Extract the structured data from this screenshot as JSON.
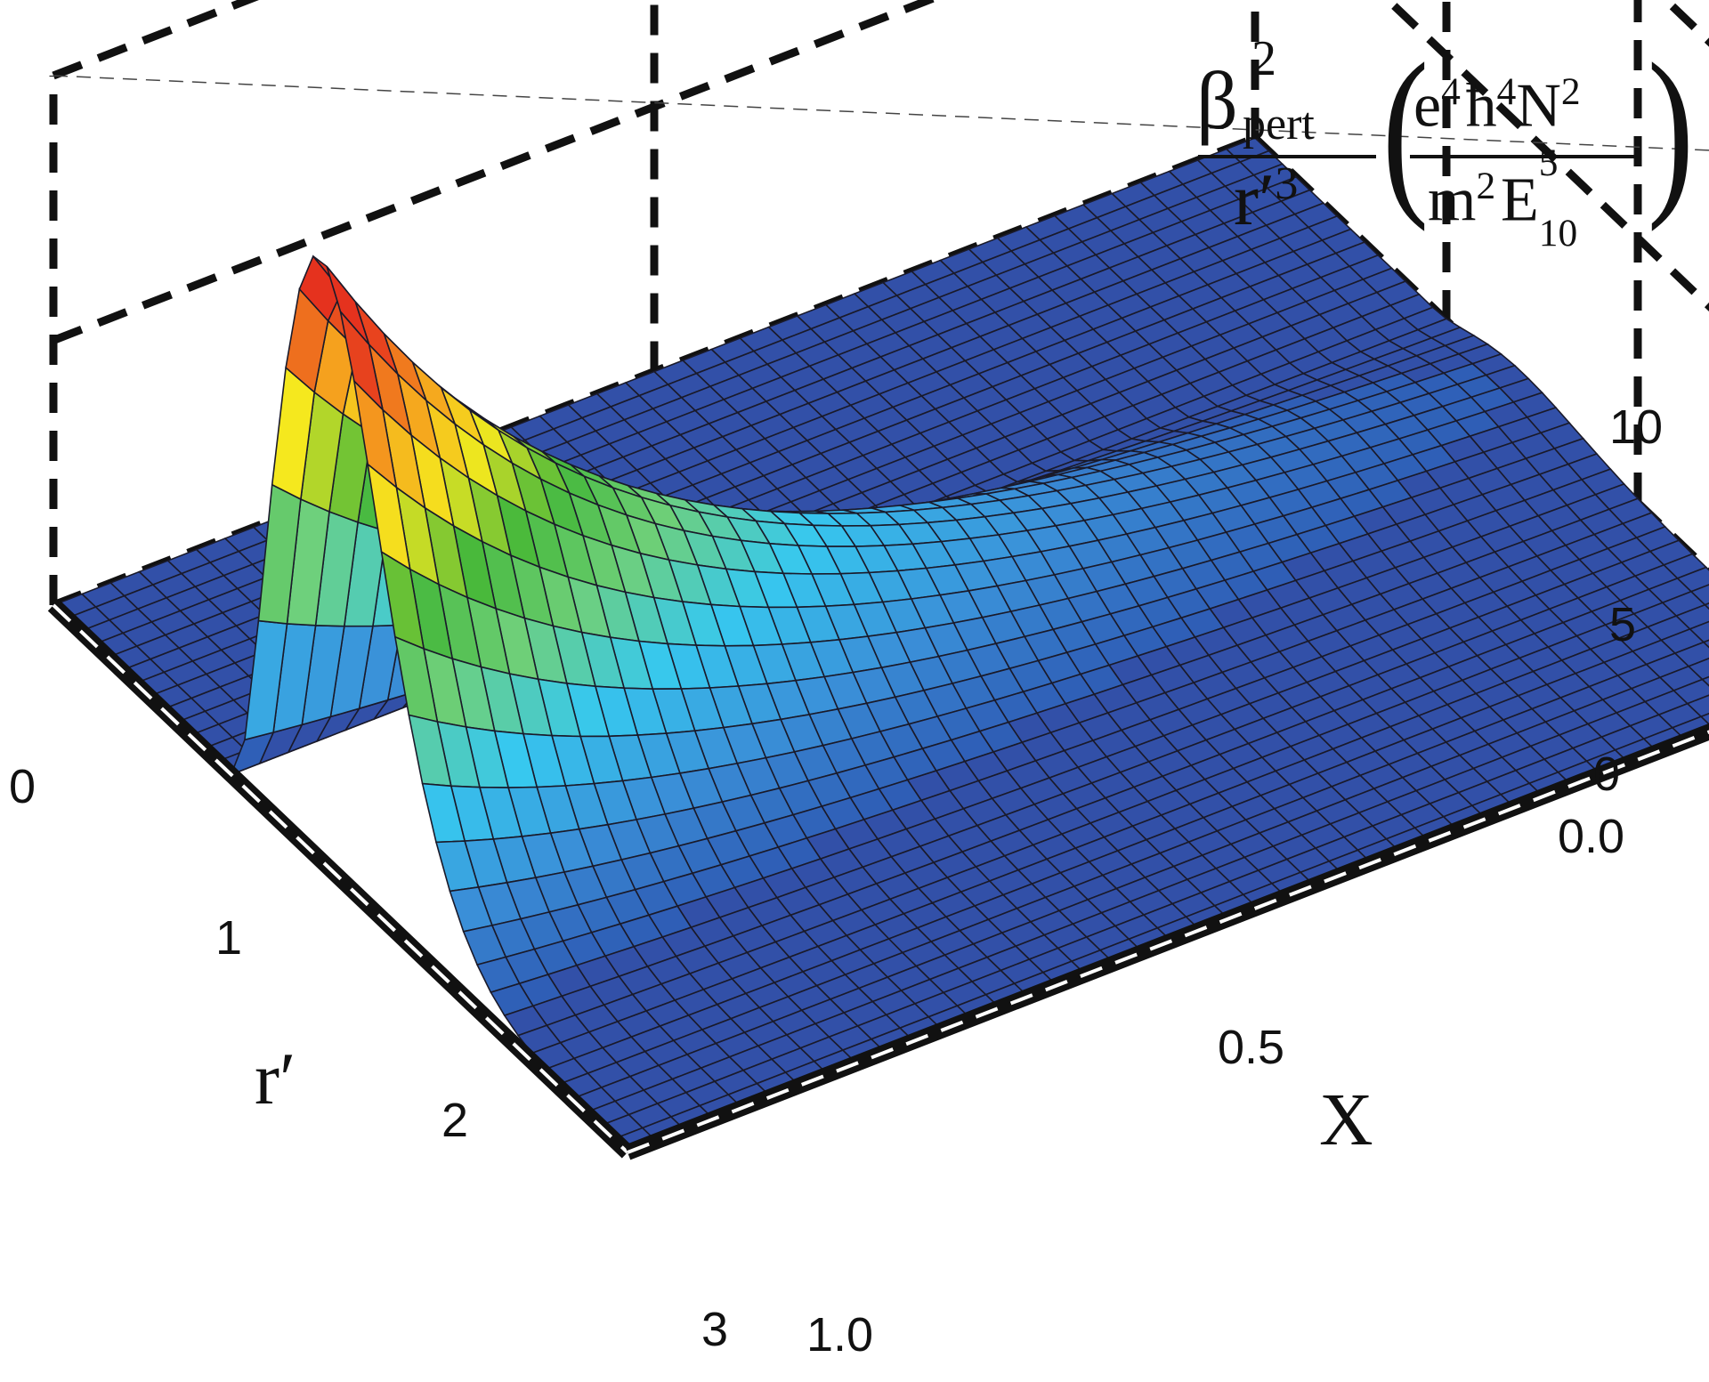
{
  "chart_data": {
    "type": "surface3d",
    "z_label": {
      "numerator_symbol": "β",
      "numerator_sup": "2",
      "numerator_sub": "pert",
      "denominator": "r′",
      "denominator_sup": "3",
      "unit_numerator": [
        "e",
        "4",
        "ħ",
        "4",
        "N",
        "2"
      ],
      "unit_denominator": [
        "m",
        "2",
        "E",
        "5",
        "10"
      ]
    },
    "x_axis": {
      "label": "r′",
      "range": [
        0,
        3
      ],
      "ticks": [
        "0",
        "1",
        "2",
        "3"
      ]
    },
    "y_axis": {
      "label": "X",
      "range": [
        0,
        1
      ],
      "ticks": [
        "0.0",
        "0.5",
        "1.0"
      ]
    },
    "z_axis": {
      "range": [
        0,
        10
      ],
      "ticks": [
        "0",
        "5",
        "10"
      ]
    },
    "surface": {
      "description_of_shape": "ridge near r′≈1, peaking at X=0 (~10) and decaying toward X=1",
      "ridge_rprime": 1.0,
      "samples": [
        {
          "X": 0.0,
          "peak_z": 10.0
        },
        {
          "X": 0.25,
          "peak_z": 5.5
        },
        {
          "X": 0.5,
          "peak_z": 2.5
        },
        {
          "X": 0.75,
          "peak_z": 1.0
        },
        {
          "X": 1.0,
          "peak_z": 0.3
        }
      ]
    },
    "grid": true,
    "colormap": [
      "#2a4aa8",
      "#3a8fd8",
      "#37c8ef",
      "#6fd07a",
      "#46b83c",
      "#f5e81e",
      "#f59a1e",
      "#e5321e"
    ]
  }
}
